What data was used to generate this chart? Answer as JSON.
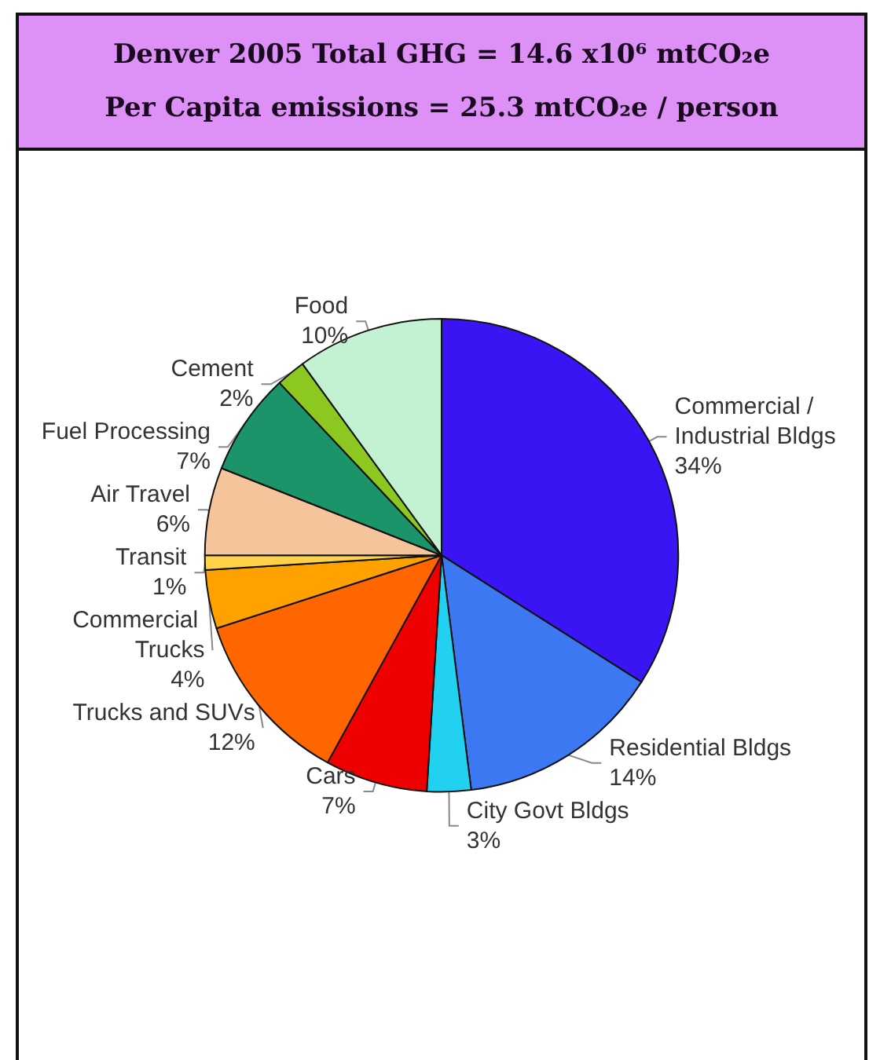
{
  "chart_data": {
    "type": "pie",
    "title": "Denver 2005 Total GHG = 14.6 x10⁶ mtCO₂e",
    "subtitle": "Per Capita emissions = 25.3 mtCO₂e / person",
    "categories": [
      "Commercial / Industrial Bldgs",
      "Residential Bldgs",
      "City Govt Bldgs",
      "Cars",
      "Trucks and SUVs",
      "Commercial Trucks",
      "Transit",
      "Air Travel",
      "Fuel Processing",
      "Cement",
      "Food"
    ],
    "values": [
      34,
      14,
      3,
      7,
      12,
      4,
      1,
      6,
      7,
      2,
      10
    ],
    "colors": [
      "#3a14f2",
      "#3c78f2",
      "#22d0f0",
      "#ee0000",
      "#ff6600",
      "#ffa200",
      "#ffd24a",
      "#f6c49a",
      "#1a9468",
      "#8cc820",
      "#c2f2d2"
    ],
    "value_labels": [
      "34%",
      "14%",
      "3%",
      "7%",
      "12%",
      "4%",
      "1%",
      "6%",
      "7%",
      "2%",
      "10%"
    ],
    "legend": false
  }
}
